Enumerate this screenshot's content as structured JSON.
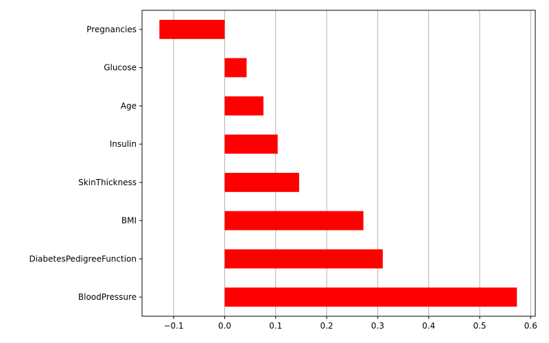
{
  "chart_data": {
    "type": "bar",
    "orientation": "horizontal",
    "title": "",
    "xlabel": "",
    "ylabel": "",
    "categories": [
      "Pregnancies",
      "Glucose",
      "Age",
      "Insulin",
      "SkinThickness",
      "BMI",
      "DiabetesPedigreeFunction",
      "BloodPressure"
    ],
    "values": [
      -0.128,
      0.043,
      0.076,
      0.104,
      0.146,
      0.272,
      0.31,
      0.573
    ],
    "xlim": [
      -0.162,
      0.609
    ],
    "xticks": [
      -0.1,
      0.0,
      0.1,
      0.2,
      0.3,
      0.4,
      0.5,
      0.6
    ],
    "xtick_labels": [
      "−0.1",
      "0.0",
      "0.1",
      "0.2",
      "0.3",
      "0.4",
      "0.5",
      "0.6"
    ],
    "grid": "vertical",
    "legend": "none",
    "colors": {
      "bar": "#ff0000",
      "grid": "#b0b0b0",
      "axis": "#000000"
    }
  }
}
